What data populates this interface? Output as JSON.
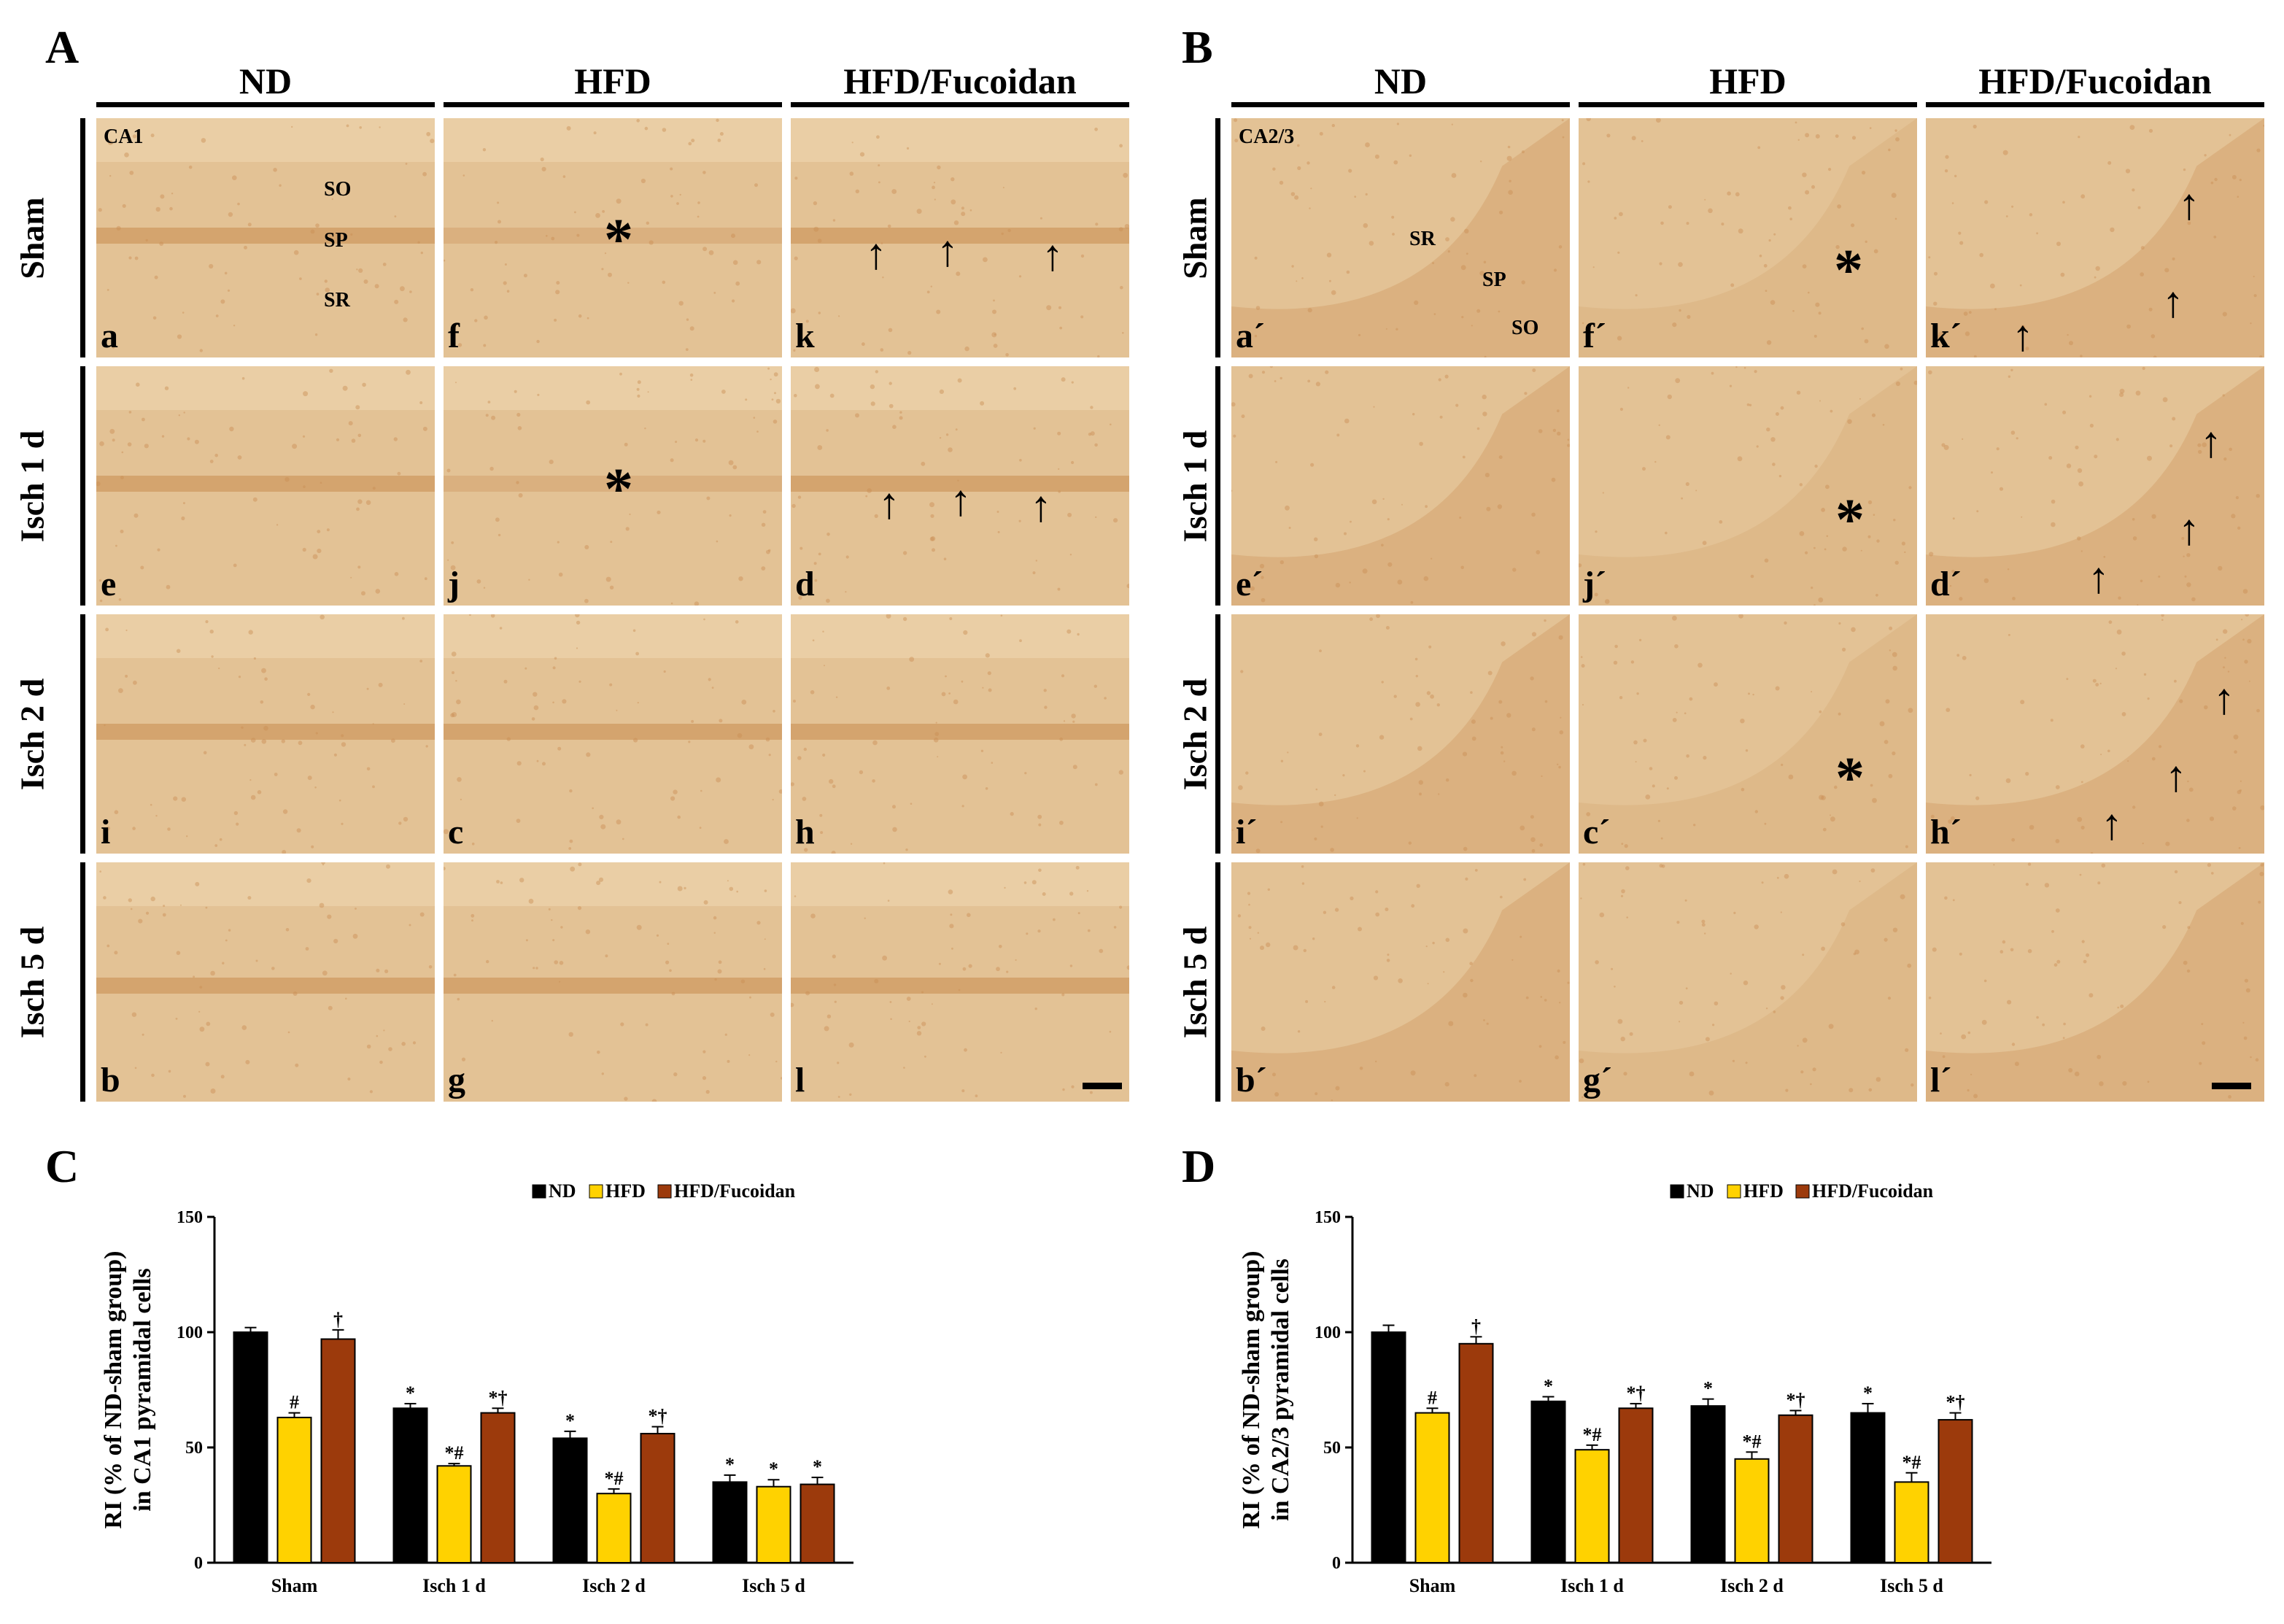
{
  "figure": {
    "panel_letters": [
      "A",
      "B",
      "C",
      "D"
    ],
    "columns": [
      "ND",
      "HFD",
      "HFD/Fucoidan"
    ],
    "rows": [
      "Sham",
      "Isch 1 d",
      "Isch 2 d",
      "Isch 5 d"
    ],
    "panelA": {
      "region": "CA1",
      "layers": [
        "SO",
        "SP",
        "SR"
      ],
      "tiles": [
        "a",
        "e",
        "i",
        "b",
        "f",
        "j",
        "c",
        "g",
        "k",
        "d",
        "h",
        "l"
      ]
    },
    "panelB": {
      "region": "CA2/3",
      "layers": [
        "SR",
        "SP",
        "SO"
      ],
      "tiles": [
        "a´",
        "e´",
        "i´",
        "b´",
        "f´",
        "j´",
        "c´",
        "g´",
        "k´",
        "d´",
        "h´",
        "l´"
      ]
    },
    "marks": {
      "asterisk": "*",
      "arrow": "↑"
    },
    "colors": {
      "tissue": "#e3c295",
      "tissue_light": "#efd6b0",
      "band": "#c98f55",
      "nd": "#000000",
      "hfd": "#ffd200",
      "fucoidan": "#9c3a0c"
    }
  },
  "chart_data": [
    {
      "panel": "C",
      "type": "bar",
      "ylabel": [
        "RI (% of ND-sham group)",
        "in CA1 pyramidal cells"
      ],
      "ylim": [
        0,
        150
      ],
      "yticks": [
        "0",
        "50",
        "100",
        "150"
      ],
      "categories": [
        "Sham",
        "Isch 1 d",
        "Isch 2 d",
        "Isch 5 d"
      ],
      "series": [
        {
          "name": "ND",
          "color": "#000000",
          "values": [
            100,
            67,
            54,
            35
          ],
          "errors": [
            2,
            2,
            3,
            3
          ],
          "labels": [
            "",
            "*",
            "*",
            "*"
          ]
        },
        {
          "name": "HFD",
          "color": "#ffd200",
          "values": [
            63,
            42,
            30,
            33
          ],
          "errors": [
            2,
            1,
            2,
            3
          ],
          "labels": [
            "#",
            "*#",
            "*#",
            "*"
          ]
        },
        {
          "name": "HFD/Fucoidan",
          "color": "#9c3a0c",
          "values": [
            97,
            65,
            56,
            34
          ],
          "errors": [
            4,
            2,
            3,
            3
          ],
          "labels": [
            "†",
            "*†",
            "*†",
            "*"
          ]
        }
      ]
    },
    {
      "panel": "D",
      "type": "bar",
      "ylabel": [
        "RI (% of ND-sham group)",
        "in CA2/3 pyramidal cells"
      ],
      "ylim": [
        0,
        150
      ],
      "yticks": [
        "0",
        "50",
        "100",
        "150"
      ],
      "categories": [
        "Sham",
        "Isch 1 d",
        "Isch 2 d",
        "Isch 5 d"
      ],
      "series": [
        {
          "name": "ND",
          "color": "#000000",
          "values": [
            100,
            70,
            68,
            65
          ],
          "errors": [
            3,
            2,
            3,
            4
          ],
          "labels": [
            "",
            "*",
            "*",
            "*"
          ]
        },
        {
          "name": "HFD",
          "color": "#ffd200",
          "values": [
            65,
            49,
            45,
            35
          ],
          "errors": [
            2,
            2,
            3,
            4
          ],
          "labels": [
            "#",
            "*#",
            "*#",
            "*#"
          ]
        },
        {
          "name": "HFD/Fucoidan",
          "color": "#9c3a0c",
          "values": [
            95,
            67,
            64,
            62
          ],
          "errors": [
            3,
            2,
            2,
            3
          ],
          "labels": [
            "†",
            "*†",
            "*†",
            "*†"
          ]
        }
      ]
    }
  ]
}
